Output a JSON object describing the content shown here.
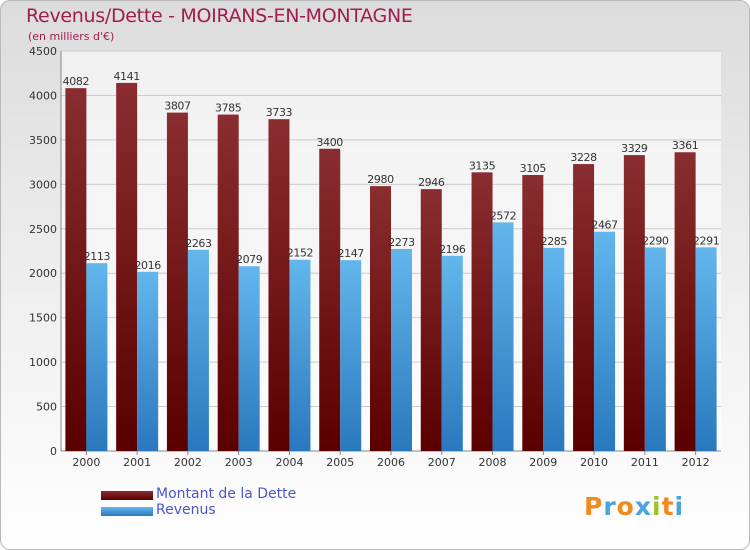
{
  "header": {
    "title": "Revenus/Dette - MOIRANS-EN-MONTAGNE",
    "subtitle": "(en milliers d'€)"
  },
  "colors": {
    "debt_top": "#8a2d30",
    "debt_bottom": "#5a0000",
    "revenue_top": "#63b6ec",
    "revenue_bottom": "#2a78bd",
    "title": "#a11d51",
    "legend_text": "#4b57c9",
    "grid": "#cccccc"
  },
  "chart_data": {
    "type": "bar",
    "categories": [
      "2000",
      "2001",
      "2002",
      "2003",
      "2004",
      "2005",
      "2006",
      "2007",
      "2008",
      "2009",
      "2010",
      "2011",
      "2012"
    ],
    "series": [
      {
        "name": "Montant de la Dette",
        "values": [
          4082,
          4141,
          3807,
          3785,
          3733,
          3400,
          2980,
          2946,
          3135,
          3105,
          3228,
          3329,
          3361
        ]
      },
      {
        "name": "Revenus",
        "values": [
          2113,
          2016,
          2263,
          2079,
          2152,
          2147,
          2273,
          2196,
          2572,
          2285,
          2467,
          2290,
          2291
        ]
      }
    ],
    "yticks": [
      "0",
      "500",
      "1000",
      "1500",
      "2000",
      "2500",
      "3000",
      "3500",
      "4000",
      "4500"
    ],
    "ylim": [
      0,
      4500
    ],
    "grid": true,
    "legend_position": "bottom-left"
  },
  "legend": {
    "items": [
      {
        "label": "Montant de la Dette"
      },
      {
        "label": "Revenus"
      }
    ]
  },
  "logo": {
    "text": "Proxiti",
    "letters": [
      "P",
      "r",
      "o",
      "x",
      "i",
      "t",
      "i"
    ],
    "colors": [
      "#f08a1f",
      "#4aa3df",
      "#f08a1f",
      "#4aa3df",
      "#9bc42a",
      "#f08a1f",
      "#4aa3df"
    ]
  }
}
